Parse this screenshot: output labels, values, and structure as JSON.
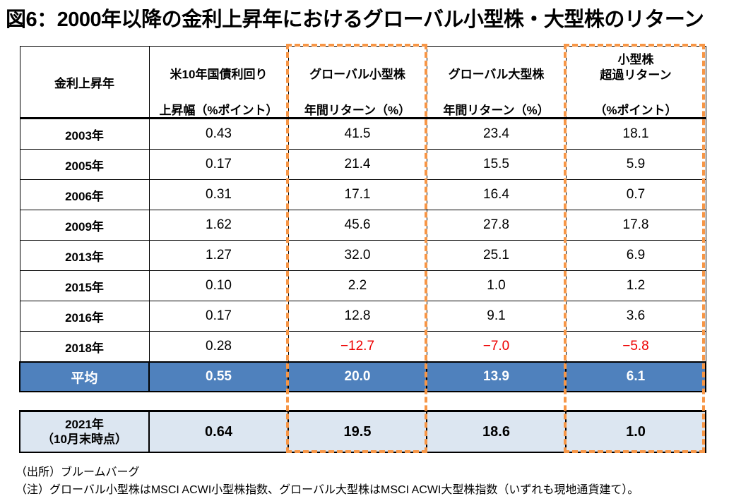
{
  "title": "図6：2000年以降の金利上昇年におけるグローバル小型株・大型株のリターン",
  "headers": [
    {
      "top": "金利上昇年",
      "bottom": ""
    },
    {
      "top": "米10年国債利回り",
      "bottom": "上昇幅（%ポイント）"
    },
    {
      "top": "グローバル小型株",
      "bottom": "年間リターン（%）"
    },
    {
      "top": "グローバル大型株",
      "bottom": "年間リターン（%）"
    },
    {
      "top": "小型株\n超過リターン",
      "bottom": "（%ポイント）"
    }
  ],
  "rows": [
    [
      "2003年",
      "0.43",
      "41.5",
      "23.4",
      "18.1"
    ],
    [
      "2005年",
      "0.17",
      "21.4",
      "15.5",
      "5.9"
    ],
    [
      "2006年",
      "0.31",
      "17.1",
      "16.4",
      "0.7"
    ],
    [
      "2009年",
      "1.62",
      "45.6",
      "27.8",
      "17.8"
    ],
    [
      "2013年",
      "1.27",
      "32.0",
      "25.1",
      "6.9"
    ],
    [
      "2015年",
      "0.10",
      "2.2",
      "1.0",
      "1.2"
    ],
    [
      "2016年",
      "0.17",
      "12.8",
      "9.1",
      "3.6"
    ],
    [
      "2018年",
      "0.28",
      "−12.7",
      "−7.0",
      "−5.8"
    ]
  ],
  "average": [
    "平均",
    "0.55",
    "20.0",
    "13.9",
    "6.1"
  ],
  "current": [
    "2021年\n（10月末時点）",
    "0.64",
    "19.5",
    "18.6",
    "1.0"
  ],
  "notes": [
    "（出所）ブルームバーグ",
    "（注）グローバル小型株はMSCI ACWI小型株指数、グローバル大型株はMSCI ACWI大型株指数（いずれも現地通貨建て）。"
  ],
  "colors": {
    "average_bg": "#4f81bd",
    "current_bg": "#dce6f1",
    "highlight": "#f79646",
    "negative": "#e00000"
  }
}
